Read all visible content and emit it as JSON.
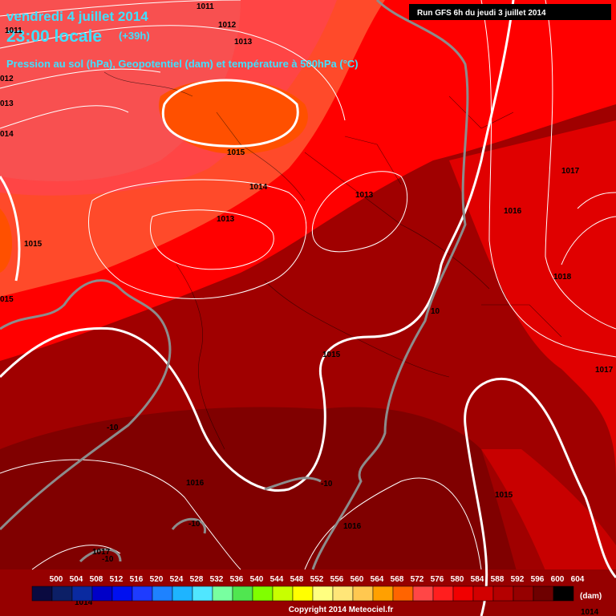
{
  "header": {
    "title": "vendredi 4 juillet 2014",
    "time": "23:00 locale",
    "lead": "(+39h)",
    "subtitle": "Pression au sol (hPa), Geopotentiel (dam) et température à 500hPa (°C)",
    "run": "Run GFS 6h du jeudi 3 juillet 2014"
  },
  "labels": [
    "1011",
    "1012",
    "1013",
    "1011",
    "012",
    "013",
    "014",
    "1015",
    "1014",
    "1013",
    "1013",
    "1015",
    "015",
    "1017",
    "1016",
    "1018",
    "10",
    "1015",
    "1017",
    "-10",
    "1016",
    "-10",
    "1015",
    "-10",
    "1016",
    "1017",
    "-10",
    "1014",
    "1014"
  ],
  "legend": {
    "values": [
      500,
      504,
      508,
      512,
      516,
      520,
      524,
      528,
      532,
      536,
      540,
      544,
      548,
      552,
      556,
      560,
      564,
      568,
      572,
      576,
      580,
      584,
      588,
      592,
      596,
      600,
      604
    ],
    "colors": [
      "#0a0a40",
      "#0c1f66",
      "#0a2aa0",
      "#0000c8",
      "#0010f0",
      "#1e3cff",
      "#1e82ff",
      "#1eb4ff",
      "#50e6ff",
      "#78ffa0",
      "#50e650",
      "#80ff00",
      "#c8ff00",
      "#ffff00",
      "#ffff80",
      "#ffe678",
      "#ffc850",
      "#ffa000",
      "#ff6400",
      "#ff4646",
      "#ff1e1e",
      "#f00000",
      "#d20000",
      "#b40000",
      "#960000",
      "#6e0000",
      "#000000"
    ],
    "unit": "(dam)"
  },
  "footer": "Copyright 2014 Meteociel.fr"
}
